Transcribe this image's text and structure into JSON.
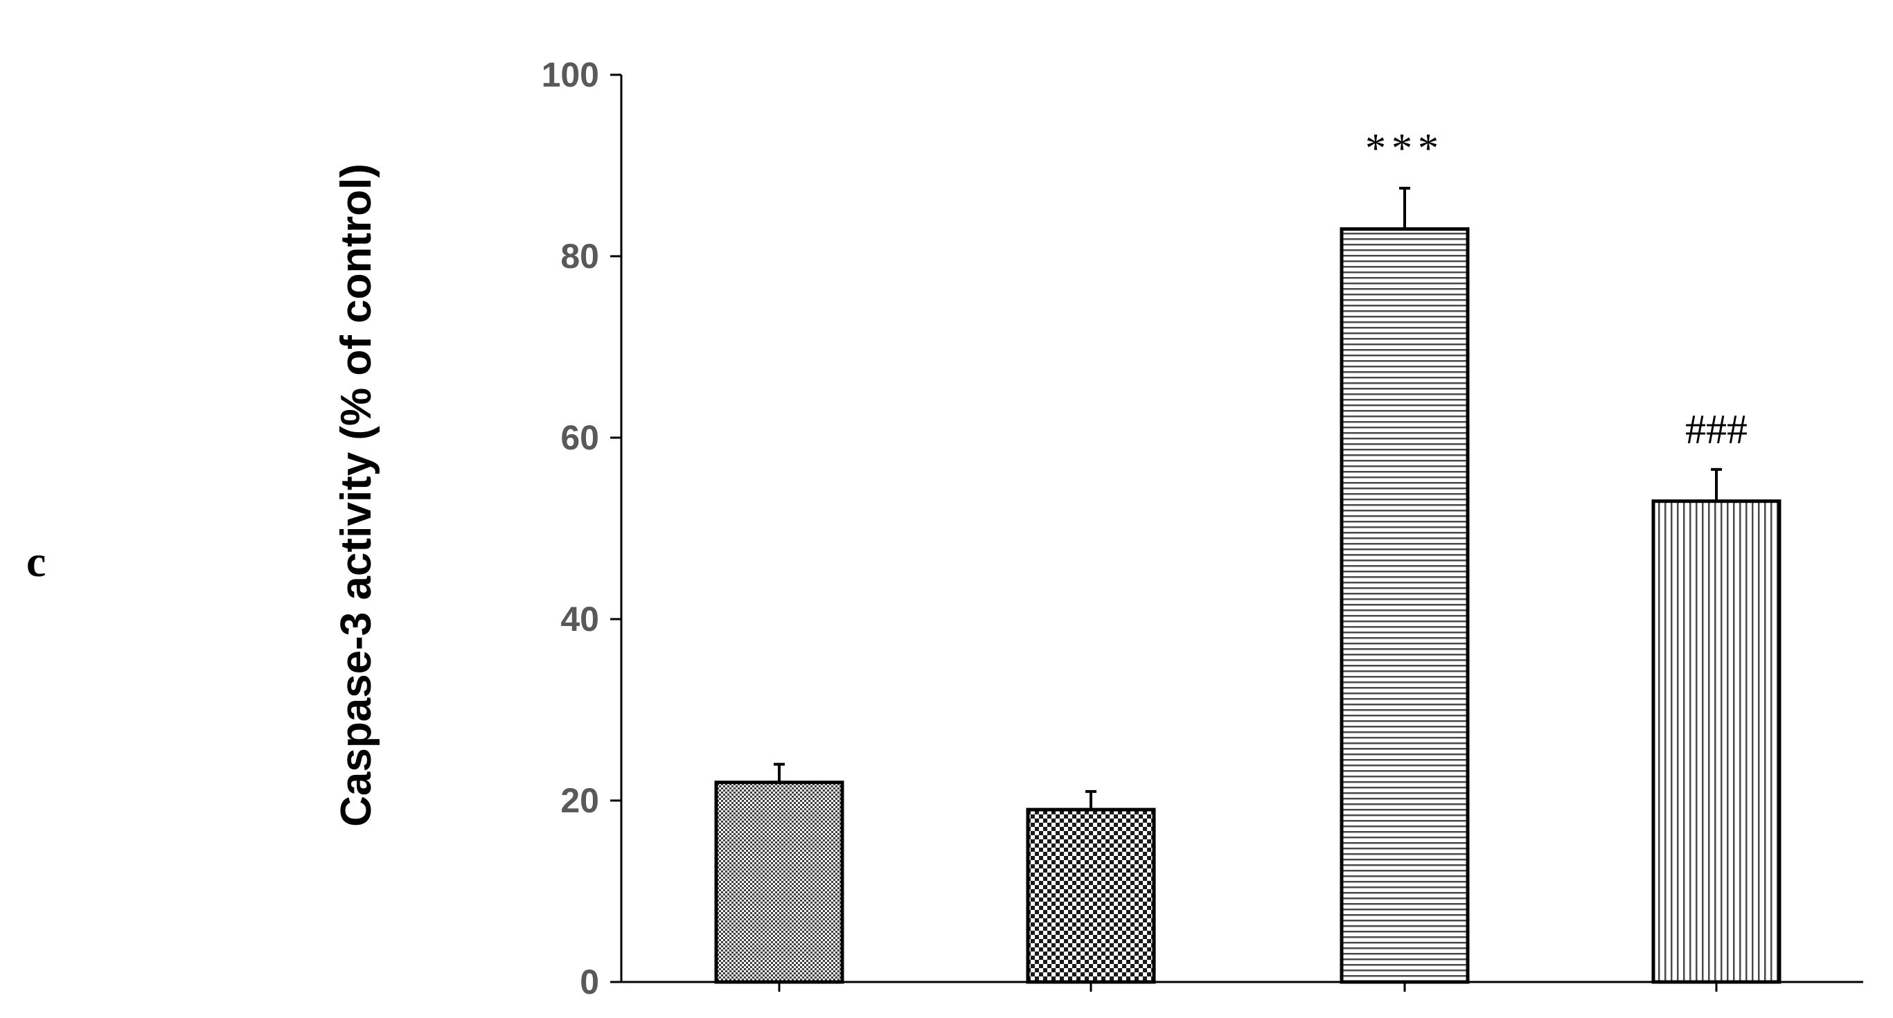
{
  "panel_label": "c",
  "chart_data": {
    "type": "bar",
    "title": "",
    "xlabel": "",
    "ylabel": "Caspase-3  activity (% of control)",
    "ylim": [
      0,
      100
    ],
    "yticks": [
      0,
      20,
      40,
      60,
      80,
      100
    ],
    "grid": false,
    "legend": "none",
    "categories": [
      "",
      "",
      "",
      ""
    ],
    "values": [
      22,
      19,
      83,
      53
    ],
    "errors": [
      2,
      2,
      4.5,
      3.5
    ],
    "annotations": [
      "",
      "",
      "***",
      "###"
    ],
    "patterns": [
      "fine-check",
      "coarse-check",
      "horizontal-lines",
      "vertical-lines"
    ],
    "colors": {
      "bar_edge": "#000000",
      "pattern_ink": "#4a4a4a",
      "axis": "#000000",
      "tick_text": "#595959"
    }
  }
}
